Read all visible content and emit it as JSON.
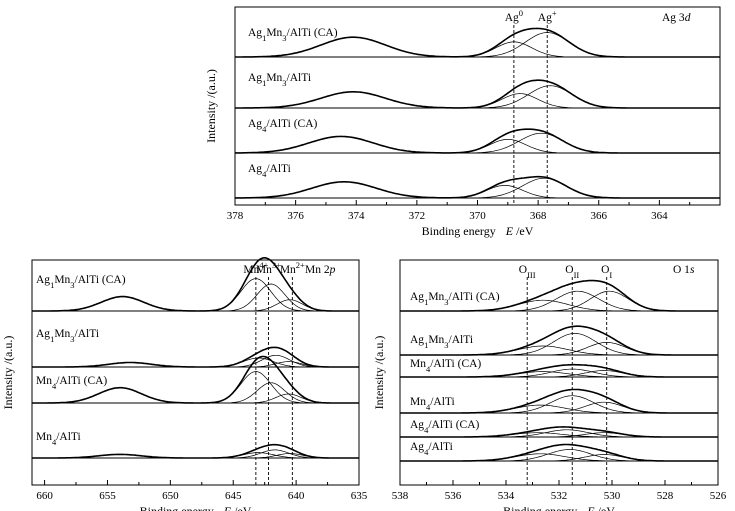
{
  "figure": {
    "y_axis_label": "Intensity /(a.u.)",
    "x_axis_label_prefix": "Binding energy",
    "x_axis_label_symbol": "E",
    "x_axis_label_unit": " /eV"
  },
  "chart_data": [
    {
      "id": "ag3d",
      "type": "line",
      "title": "Ag 3d",
      "title_parts": [
        "Ag 3",
        "d"
      ],
      "xlabel": "Binding energy E /eV",
      "ylabel": "Intensity /(a.u.)",
      "xlim": [
        378,
        362
      ],
      "x_reversed": true,
      "xticks": [
        378,
        376,
        374,
        372,
        370,
        368,
        366,
        364
      ],
      "grid": false,
      "reference_lines": [
        {
          "x": 368.8,
          "label": "Ag0",
          "label_parts": [
            [
              "Ag",
              ""
            ],
            [
              "0",
              "sup"
            ]
          ]
        },
        {
          "x": 367.7,
          "label": "Ag+",
          "label_parts": [
            [
              "Ag",
              ""
            ],
            [
              "+",
              "sup"
            ]
          ]
        }
      ],
      "spectra": [
        {
          "name": "Ag1Mn3/AlTi (CA)",
          "name_parts": [
            [
              "Ag",
              ""
            ],
            [
              "1",
              "sub"
            ],
            [
              "Mn",
              ""
            ],
            [
              "3",
              "sub"
            ],
            [
              "/AlTi (CA)",
              ""
            ]
          ],
          "component_peaks": [
            {
              "center": 374.1,
              "height": 0.55,
              "fwhm": 2.5
            },
            {
              "center": 368.8,
              "height": 0.42,
              "fwhm": 1.4
            },
            {
              "center": 367.7,
              "height": 0.68,
              "fwhm": 1.7
            }
          ]
        },
        {
          "name": "Ag1Mn3/AlTi",
          "name_parts": [
            [
              "Ag",
              ""
            ],
            [
              "1",
              "sub"
            ],
            [
              "Mn",
              ""
            ],
            [
              "3",
              "sub"
            ],
            [
              "/AlTi",
              ""
            ]
          ],
          "component_peaks": [
            {
              "center": 374.1,
              "height": 0.45,
              "fwhm": 2.5
            },
            {
              "center": 368.6,
              "height": 0.4,
              "fwhm": 1.4
            },
            {
              "center": 367.6,
              "height": 0.62,
              "fwhm": 1.7
            }
          ]
        },
        {
          "name": "Ag4/AlTi (CA)",
          "name_parts": [
            [
              "Ag",
              ""
            ],
            [
              "4",
              "sub"
            ],
            [
              "/AlTi (CA)",
              ""
            ]
          ],
          "component_peaks": [
            {
              "center": 374.5,
              "height": 0.46,
              "fwhm": 2.5
            },
            {
              "center": 369.0,
              "height": 0.38,
              "fwhm": 1.4
            },
            {
              "center": 367.9,
              "height": 0.55,
              "fwhm": 1.7
            }
          ]
        },
        {
          "name": "Ag4/AlTi",
          "name_parts": [
            [
              "Ag",
              ""
            ],
            [
              "4",
              "sub"
            ],
            [
              "/AlTi",
              ""
            ]
          ],
          "component_peaks": [
            {
              "center": 374.4,
              "height": 0.45,
              "fwhm": 2.5
            },
            {
              "center": 369.1,
              "height": 0.35,
              "fwhm": 1.4
            },
            {
              "center": 367.8,
              "height": 0.55,
              "fwhm": 1.7
            }
          ]
        }
      ]
    },
    {
      "id": "mn2p",
      "type": "line",
      "title": "Mn 2p",
      "title_parts": [
        "Mn 2",
        "p"
      ],
      "xlabel": "Binding energy E /eV",
      "ylabel": "Intensity /(a.u.)",
      "xlim": [
        661,
        635
      ],
      "x_reversed": true,
      "xticks": [
        660,
        655,
        650,
        645,
        640,
        635
      ],
      "grid": false,
      "reference_lines": [
        {
          "x": 643.2,
          "label": "Mn4+",
          "label_parts": [
            [
              "Mn",
              ""
            ],
            [
              "4+",
              "sup"
            ]
          ]
        },
        {
          "x": 642.2,
          "label": "Mn3+",
          "label_parts": [
            [
              "Mn",
              ""
            ],
            [
              "3+",
              "sup"
            ]
          ]
        },
        {
          "x": 640.3,
          "label": "Mn2+",
          "label_parts": [
            [
              "Mn",
              ""
            ],
            [
              "2+",
              "sup"
            ]
          ]
        }
      ],
      "spectra": [
        {
          "name": "Ag1Mn3/AlTi (CA)",
          "name_parts": [
            [
              "Ag",
              ""
            ],
            [
              "1",
              "sub"
            ],
            [
              "Mn",
              ""
            ],
            [
              "3",
              "sub"
            ],
            [
              "/AlTi (CA)",
              ""
            ]
          ],
          "component_peaks": [
            {
              "center": 653.8,
              "height": 0.32,
              "fwhm": 4.0
            },
            {
              "center": 643.2,
              "height": 0.72,
              "fwhm": 2.8
            },
            {
              "center": 642.0,
              "height": 0.6,
              "fwhm": 2.6
            },
            {
              "center": 640.5,
              "height": 0.25,
              "fwhm": 2.4
            }
          ]
        },
        {
          "name": "Ag1Mn3/AlTi",
          "name_parts": [
            [
              "Ag",
              ""
            ],
            [
              "1",
              "sub"
            ],
            [
              "Mn",
              ""
            ],
            [
              "3",
              "sub"
            ],
            [
              "/AlTi",
              ""
            ]
          ],
          "component_peaks": [
            {
              "center": 653.2,
              "height": 0.1,
              "fwhm": 4.0
            },
            {
              "center": 643.0,
              "height": 0.2,
              "fwhm": 2.8
            },
            {
              "center": 641.6,
              "height": 0.26,
              "fwhm": 2.6
            },
            {
              "center": 640.6,
              "height": 0.12,
              "fwhm": 2.4
            }
          ]
        },
        {
          "name": "Mn4/AlTi (CA)",
          "name_parts": [
            [
              "Mn",
              ""
            ],
            [
              "4",
              "sub"
            ],
            [
              "/AlTi (CA)",
              ""
            ]
          ],
          "component_peaks": [
            {
              "center": 654.0,
              "height": 0.34,
              "fwhm": 4.0
            },
            {
              "center": 643.2,
              "height": 0.7,
              "fwhm": 2.8
            },
            {
              "center": 642.0,
              "height": 0.45,
              "fwhm": 2.6
            },
            {
              "center": 640.6,
              "height": 0.2,
              "fwhm": 2.4
            }
          ]
        },
        {
          "name": "Mn4/AlTi",
          "name_parts": [
            [
              "Mn",
              ""
            ],
            [
              "4",
              "sub"
            ],
            [
              "/AlTi",
              ""
            ]
          ],
          "component_peaks": [
            {
              "center": 654.0,
              "height": 0.08,
              "fwhm": 4.0
            },
            {
              "center": 643.0,
              "height": 0.12,
              "fwhm": 2.8
            },
            {
              "center": 641.7,
              "height": 0.18,
              "fwhm": 2.6
            },
            {
              "center": 640.5,
              "height": 0.1,
              "fwhm": 2.4
            }
          ]
        }
      ]
    },
    {
      "id": "o1s",
      "type": "line",
      "title": "O 1s",
      "title_parts": [
        "O 1",
        "s"
      ],
      "xlabel": "Binding energy E /eV",
      "ylabel": "Intensity /(a.u.)",
      "xlim": [
        538,
        526
      ],
      "x_reversed": true,
      "xticks": [
        538,
        536,
        534,
        532,
        530,
        528,
        526
      ],
      "grid": false,
      "reference_lines": [
        {
          "x": 533.2,
          "label": "OIII",
          "label_parts": [
            [
              "O",
              ""
            ],
            [
              "III",
              "sub"
            ]
          ]
        },
        {
          "x": 531.5,
          "label": "OII",
          "label_parts": [
            [
              "O",
              ""
            ],
            [
              "II",
              "sub"
            ]
          ]
        },
        {
          "x": 530.2,
          "label": "OI",
          "label_parts": [
            [
              "O",
              ""
            ],
            [
              "I",
              "sub"
            ]
          ]
        }
      ],
      "spectra": [
        {
          "name": "Ag1Mn3/AlTi (CA)",
          "name_parts": [
            [
              "Ag",
              ""
            ],
            [
              "1",
              "sub"
            ],
            [
              "Mn",
              ""
            ],
            [
              "3",
              "sub"
            ],
            [
              "/AlTi (CA)",
              ""
            ]
          ],
          "component_peaks": [
            {
              "center": 532.6,
              "height": 0.3,
              "fwhm": 2.2
            },
            {
              "center": 531.3,
              "height": 0.55,
              "fwhm": 1.9
            },
            {
              "center": 530.1,
              "height": 0.55,
              "fwhm": 1.7
            }
          ]
        },
        {
          "name": "Ag1Mn3/AlTi",
          "name_parts": [
            [
              "Ag",
              ""
            ],
            [
              "1",
              "sub"
            ],
            [
              "Mn",
              ""
            ],
            [
              "3",
              "sub"
            ],
            [
              "/AlTi",
              ""
            ]
          ],
          "component_peaks": [
            {
              "center": 532.6,
              "height": 0.25,
              "fwhm": 2.2
            },
            {
              "center": 531.4,
              "height": 0.6,
              "fwhm": 1.9
            },
            {
              "center": 530.2,
              "height": 0.35,
              "fwhm": 1.7
            }
          ]
        },
        {
          "name": "Mn4/AlTi (CA)",
          "name_parts": [
            [
              "Mn",
              ""
            ],
            [
              "4",
              "sub"
            ],
            [
              "/AlTi (CA)",
              ""
            ]
          ],
          "component_peaks": [
            {
              "center": 532.6,
              "height": 0.15,
              "fwhm": 2.2
            },
            {
              "center": 531.5,
              "height": 0.22,
              "fwhm": 1.9
            },
            {
              "center": 530.3,
              "height": 0.18,
              "fwhm": 1.7
            }
          ]
        },
        {
          "name": "Mn4/AlTi",
          "name_parts": [
            [
              "Mn",
              ""
            ],
            [
              "4",
              "sub"
            ],
            [
              "/AlTi",
              ""
            ]
          ],
          "component_peaks": [
            {
              "center": 532.7,
              "height": 0.22,
              "fwhm": 2.2
            },
            {
              "center": 531.5,
              "height": 0.48,
              "fwhm": 1.9
            },
            {
              "center": 530.3,
              "height": 0.3,
              "fwhm": 1.7
            }
          ]
        },
        {
          "name": "Ag4/AlTi (CA)",
          "name_parts": [
            [
              "Ag",
              ""
            ],
            [
              "4",
              "sub"
            ],
            [
              "/AlTi (CA)",
              ""
            ]
          ],
          "component_peaks": [
            {
              "center": 532.8,
              "height": 0.12,
              "fwhm": 2.2
            },
            {
              "center": 531.7,
              "height": 0.2,
              "fwhm": 1.9
            },
            {
              "center": 530.3,
              "height": 0.12,
              "fwhm": 1.7
            }
          ]
        },
        {
          "name": "Ag4/AlTi",
          "name_parts": [
            [
              "Ag",
              ""
            ],
            [
              "4",
              "sub"
            ],
            [
              "/AlTi",
              ""
            ]
          ],
          "component_peaks": [
            {
              "center": 532.7,
              "height": 0.2,
              "fwhm": 2.2
            },
            {
              "center": 531.6,
              "height": 0.32,
              "fwhm": 1.9
            },
            {
              "center": 530.3,
              "height": 0.18,
              "fwhm": 1.7
            }
          ]
        }
      ]
    }
  ]
}
